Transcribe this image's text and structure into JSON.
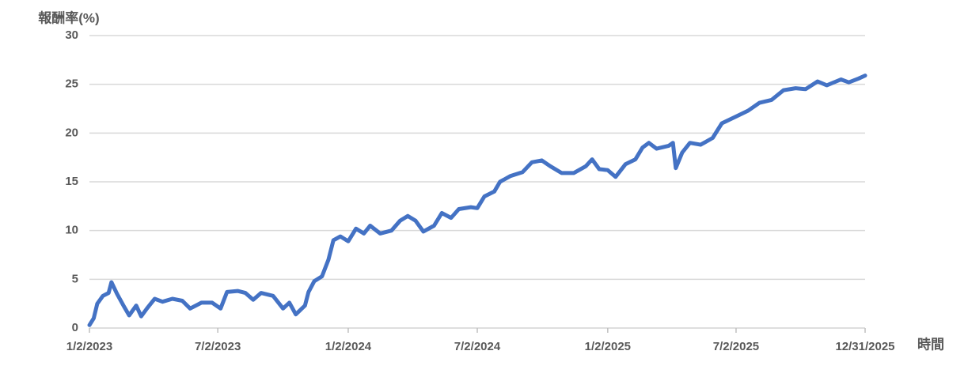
{
  "chart_data": {
    "type": "line",
    "y_label": "報酬率(%)",
    "x_label": "時間",
    "color": "#4472c4",
    "ylim": [
      0,
      30
    ],
    "yticks": [
      0,
      5,
      10,
      15,
      20,
      25,
      30
    ],
    "grid": true,
    "xlim": [
      "1/2/2023",
      "12/31/2025"
    ],
    "xticks": [
      "1/2/2023",
      "7/2/2023",
      "1/2/2024",
      "7/2/2024",
      "1/2/2025",
      "7/2/2025",
      "12/31/2025"
    ],
    "x": [
      "1/2/2023",
      "1/8/2023",
      "1/13/2023",
      "1/21/2023",
      "1/29/2023",
      "2/2/2023",
      "2/10/2023",
      "2/19/2023",
      "2/27/2023",
      "3/9/2023",
      "3/16/2023",
      "3/24/2023",
      "4/4/2023",
      "4/15/2023",
      "4/29/2023",
      "5/13/2023",
      "5/24/2023",
      "6/9/2023",
      "6/24/2023",
      "7/6/2023",
      "7/15/2023",
      "7/30/2023",
      "8/10/2023",
      "8/21/2023",
      "9/1/2023",
      "9/18/2023",
      "10/2/2023",
      "10/11/2023",
      "10/20/2023",
      "11/2/2023",
      "11/7/2023",
      "11/15/2023",
      "11/26/2023",
      "12/5/2023",
      "12/12/2023",
      "12/22/2023",
      "1/2/2024",
      "1/13/2024",
      "1/24/2024",
      "2/2/2024",
      "2/16/2024",
      "3/3/2024",
      "3/15/2024",
      "3/26/2024",
      "4/6/2024",
      "4/17/2024",
      "5/2/2024",
      "5/13/2024",
      "5/26/2024",
      "6/6/2024",
      "6/23/2024",
      "7/2/2024",
      "7/12/2024",
      "7/26/2024",
      "8/3/2024",
      "8/18/2024",
      "9/4/2024",
      "9/17/2024",
      "10/1/2024",
      "10/13/2024",
      "10/29/2024",
      "11/15/2024",
      "12/2/2024",
      "12/11/2024",
      "12/21/2024",
      "1/2/2025",
      "1/13/2025",
      "1/27/2025",
      "2/10/2025",
      "2/20/2025",
      "3/1/2025",
      "3/12/2025",
      "3/29/2025",
      "4/4/2025",
      "4/8/2025",
      "4/17/2025",
      "4/28/2025",
      "5/13/2025",
      "5/30/2025",
      "6/12/2025",
      "7/2/2025",
      "7/19/2025",
      "8/4/2025",
      "8/21/2025",
      "9/7/2025",
      "9/24/2025",
      "10/8/2025",
      "10/25/2025",
      "11/7/2025",
      "11/27/2025",
      "12/8/2025",
      "12/22/2025",
      "12/31/2025"
    ],
    "values": [
      0.3,
      1,
      2.5,
      3.3,
      3.6,
      4.7,
      3.5,
      2.3,
      1.3,
      2.3,
      1.2,
      2,
      3,
      2.7,
      3,
      2.8,
      2,
      2.6,
      2.6,
      2,
      3.7,
      3.8,
      3.6,
      2.9,
      3.6,
      3.3,
      2,
      2.6,
      1.4,
      2.3,
      3.7,
      4.8,
      5.3,
      7,
      9,
      9.4,
      8.9,
      10.2,
      9.7,
      10.5,
      9.7,
      10,
      11,
      11.5,
      11,
      9.9,
      10.5,
      11.8,
      11.3,
      12.2,
      12.4,
      12.3,
      13.5,
      14,
      15,
      15.6,
      16,
      17,
      17.2,
      16.6,
      15.9,
      15.9,
      16.6,
      17.3,
      16.3,
      16.2,
      15.5,
      16.8,
      17.3,
      18.5,
      19,
      18.4,
      18.7,
      19,
      16.4,
      18,
      19,
      18.8,
      19.5,
      21,
      21.7,
      22.3,
      23.1,
      23.4,
      24.4,
      24.6,
      24.5,
      25.3,
      24.9,
      25.5,
      25.2,
      25.6,
      25.9
    ]
  }
}
